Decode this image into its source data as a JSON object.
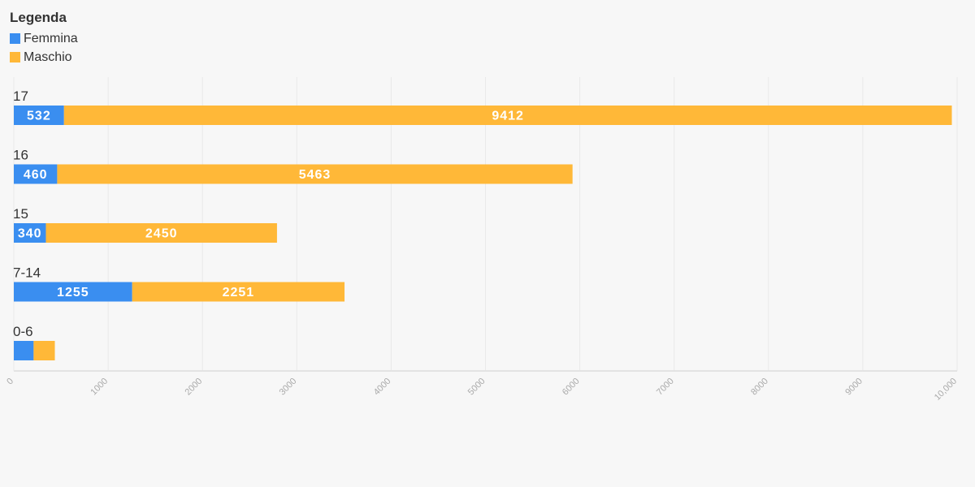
{
  "legend": {
    "title": "Legenda",
    "items": [
      {
        "label": "Femmina",
        "color": "#3a8ef0"
      },
      {
        "label": "Maschio",
        "color": "#ffb838"
      }
    ]
  },
  "chart_data": {
    "type": "bar",
    "orientation": "horizontal",
    "stacked": true,
    "categories": [
      "17",
      "16",
      "15",
      "7-14",
      "0-6"
    ],
    "series": [
      {
        "name": "Femmina",
        "color": "#3a8ef0",
        "values": [
          532,
          460,
          340,
          1255,
          210
        ]
      },
      {
        "name": "Maschio",
        "color": "#ffb838",
        "values": [
          9412,
          5463,
          2450,
          2251,
          225
        ]
      }
    ],
    "data_labels": [
      [
        "532",
        "460",
        "340",
        "1255",
        ""
      ],
      [
        "9412",
        "5463",
        "2450",
        "2251",
        ""
      ]
    ],
    "xlim": [
      0,
      10000
    ],
    "xticks": [
      0,
      1000,
      2000,
      3000,
      4000,
      5000,
      6000,
      7000,
      8000,
      9000,
      10000
    ],
    "xtick_labels": [
      "0",
      "1000",
      "2000",
      "3000",
      "4000",
      "5000",
      "6000",
      "7000",
      "8000",
      "9000",
      "10,000"
    ],
    "grid": true,
    "legend_position": "top-left"
  }
}
